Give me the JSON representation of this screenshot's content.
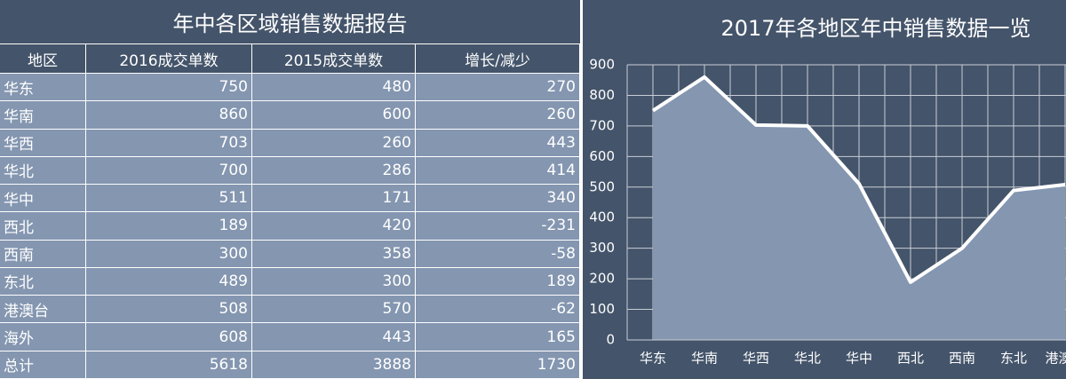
{
  "table": {
    "title": "年中各区域销售数据报告",
    "header": [
      "地区",
      "2016成交单数",
      "2015成交单数",
      "增长/减少"
    ],
    "rows": [
      [
        "华东",
        750,
        480,
        270
      ],
      [
        "华南",
        860,
        600,
        260
      ],
      [
        "华西",
        703,
        260,
        443
      ],
      [
        "华北",
        700,
        286,
        414
      ],
      [
        "华中",
        511,
        171,
        340
      ],
      [
        "西北",
        189,
        420,
        -231
      ],
      [
        "西南",
        300,
        358,
        -58
      ],
      [
        "东北",
        489,
        300,
        189
      ],
      [
        "港澳台",
        508,
        570,
        -62
      ],
      [
        "海外",
        608,
        443,
        165
      ],
      [
        "总计",
        5618,
        3888,
        1730
      ]
    ]
  },
  "chart_data": {
    "type": "area",
    "title": "2017年各地区年中销售数据一览",
    "categories": [
      "华东",
      "华南",
      "华西",
      "华北",
      "华中",
      "西北",
      "西南",
      "东北",
      "港澳台"
    ],
    "values": [
      750,
      860,
      703,
      700,
      511,
      189,
      300,
      489,
      508
    ],
    "color": "#ffffff",
    "fill": "#8496b0",
    "ylim": [
      0,
      900
    ],
    "yticks": [
      0,
      100,
      200,
      300,
      400,
      500,
      600,
      700,
      800,
      900
    ],
    "grid": true
  }
}
